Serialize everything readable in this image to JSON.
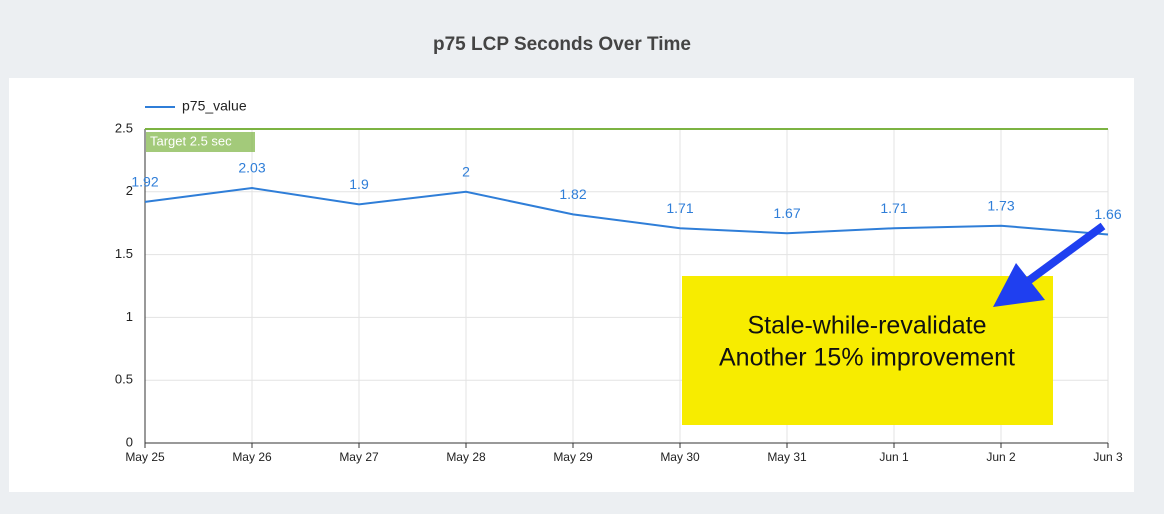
{
  "chart_data": {
    "type": "line",
    "title": "p75 LCP Seconds Over Time",
    "categories": [
      "May 25",
      "May 26",
      "May 27",
      "May 28",
      "May 29",
      "May 30",
      "May 31",
      "Jun 1",
      "Jun 2",
      "Jun 3"
    ],
    "series": [
      {
        "name": "p75_value",
        "color": "#2f7ed8",
        "values": [
          1.92,
          2.03,
          1.9,
          2,
          1.82,
          1.71,
          1.67,
          1.71,
          1.73,
          1.66
        ]
      }
    ],
    "ylim": [
      0,
      2.5
    ],
    "yticks": [
      0,
      0.5,
      1,
      1.5,
      2,
      2.5
    ],
    "grid": true,
    "legend": "top-left",
    "reference_line": {
      "value": 2.5,
      "label": "Target 2.5 sec",
      "color": "#7cb342"
    },
    "annotation": {
      "lines": [
        "Stale-while-revalidate",
        "Another 15% improvement"
      ],
      "color": "#f7ec00",
      "arrow_color": "#1f3ff0"
    }
  }
}
